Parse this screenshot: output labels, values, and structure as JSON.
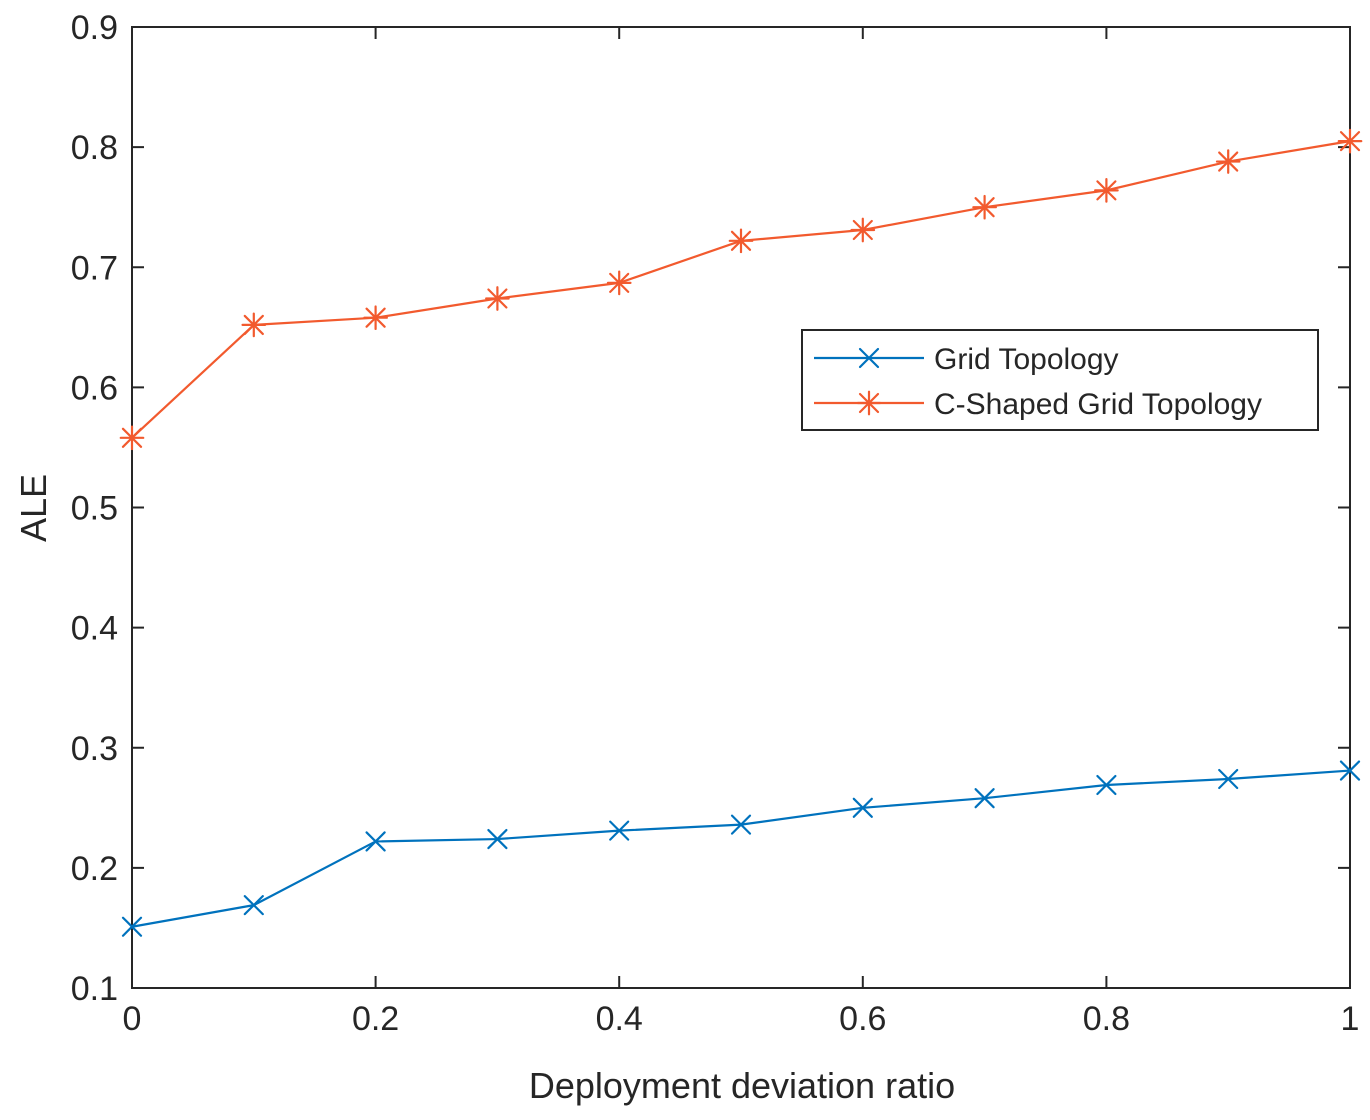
{
  "chart_data": {
    "type": "line",
    "xlabel": "Deployment deviation ratio",
    "ylabel": "ALE",
    "xlim": [
      0,
      1
    ],
    "ylim": [
      0.1,
      0.9
    ],
    "xticks": [
      0,
      0.2,
      0.4,
      0.6,
      0.8,
      1
    ],
    "xtick_labels": [
      "0",
      "0.2",
      "0.4",
      "0.6",
      "0.8",
      "1"
    ],
    "yticks": [
      0.1,
      0.2,
      0.3,
      0.4,
      0.5,
      0.6,
      0.7,
      0.8,
      0.9
    ],
    "ytick_labels": [
      "0.1",
      "0.2",
      "0.3",
      "0.4",
      "0.5",
      "0.6",
      "0.7",
      "0.8",
      "0.9"
    ],
    "grid": false,
    "legend_position": "right",
    "x": [
      0,
      0.1,
      0.2,
      0.3,
      0.4,
      0.5,
      0.6,
      0.7,
      0.8,
      0.9,
      1.0
    ],
    "series": [
      {
        "name": "Grid Topology",
        "marker": "x",
        "color": "#0072BD",
        "values": [
          0.151,
          0.169,
          0.222,
          0.224,
          0.231,
          0.236,
          0.25,
          0.258,
          0.269,
          0.274,
          0.281
        ]
      },
      {
        "name": "C-Shaped Grid Topology",
        "marker": "asterisk",
        "color": "#F25A2E",
        "values": [
          0.558,
          0.652,
          0.658,
          0.674,
          0.687,
          0.722,
          0.731,
          0.75,
          0.764,
          0.788,
          0.805
        ]
      }
    ]
  }
}
